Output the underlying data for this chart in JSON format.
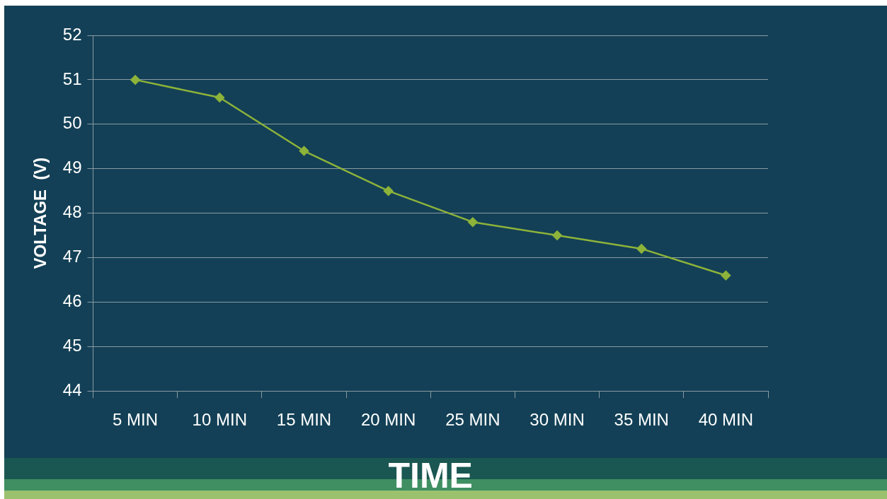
{
  "chart_data": {
    "type": "line",
    "xlabel": "TIME",
    "ylabel": "VOLTAGE  (V)",
    "categories": [
      "5 MIN",
      "10 MIN",
      "15 MIN",
      "20 MIN",
      "25 MIN",
      "30 MIN",
      "35 MIN",
      "40 MIN"
    ],
    "series": [
      {
        "color": "#8db33a",
        "values": [
          51,
          50.6,
          49.4,
          48.5,
          47.8,
          47.5,
          47.2,
          46.6
        ]
      }
    ],
    "ylim": [
      44,
      52
    ],
    "yticks": [
      44,
      45,
      46,
      47,
      48,
      49,
      50,
      51,
      52
    ],
    "grid": "y",
    "legend": false,
    "marker": "diamond",
    "line_style": "solid"
  }
}
